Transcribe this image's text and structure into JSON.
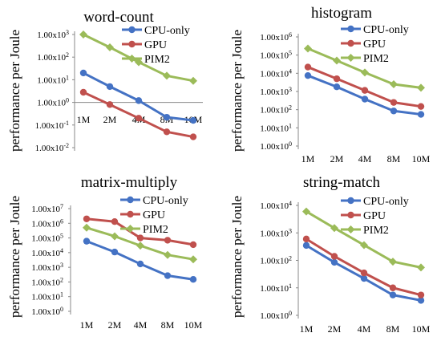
{
  "figure": {
    "ylabel": "performance per Joule"
  },
  "series_styles": [
    {
      "color": "#4472C4",
      "marker": "circle"
    },
    {
      "color": "#C0504D",
      "marker": "circle"
    },
    {
      "color": "#9BBB59",
      "marker": "diamond"
    }
  ],
  "chart_data": [
    {
      "type": "line",
      "title": "word-count",
      "y_scale": "log",
      "ylim_exp": [
        -2,
        3
      ],
      "categories": [
        "1M",
        "2M",
        "4M",
        "8M",
        "10M"
      ],
      "series": [
        {
          "name": "CPU-only",
          "values": [
            20,
            5,
            1.2,
            0.22,
            0.16
          ]
        },
        {
          "name": "GPU",
          "values": [
            2.8,
            0.8,
            0.2,
            0.05,
            0.03
          ]
        },
        {
          "name": "PIM2",
          "values": [
            1000,
            270,
            60,
            15,
            9
          ]
        }
      ],
      "legend": "top-right"
    },
    {
      "type": "line",
      "title": "histogram",
      "y_scale": "log",
      "ylim_exp": [
        0,
        6
      ],
      "categories": [
        "1M",
        "2M",
        "4M",
        "8M",
        "10M"
      ],
      "series": [
        {
          "name": "CPU-only",
          "values": [
            7500,
            1800,
            380,
            85,
            55
          ]
        },
        {
          "name": "GPU",
          "values": [
            22000,
            5000,
            1150,
            250,
            150
          ]
        },
        {
          "name": "PIM2",
          "values": [
            230000,
            50000,
            11000,
            2500,
            1600
          ]
        }
      ],
      "legend": "top-right"
    },
    {
      "type": "line",
      "title": "matrix-multiply",
      "y_scale": "log",
      "ylim_exp": [
        0,
        7
      ],
      "categories": [
        "1M",
        "2M",
        "4M",
        "8M",
        "10M"
      ],
      "series": [
        {
          "name": "CPU-only",
          "values": [
            60000,
            11000,
            1700,
            270,
            150
          ]
        },
        {
          "name": "GPU",
          "values": [
            2000000,
            1300000,
            100000,
            70000,
            35000
          ]
        },
        {
          "name": "PIM2",
          "values": [
            500000,
            130000,
            30000,
            7000,
            3500
          ]
        }
      ],
      "legend": "top-right"
    },
    {
      "type": "line",
      "title": "string-match",
      "y_scale": "log",
      "ylim_exp": [
        0,
        4
      ],
      "categories": [
        "1M",
        "2M",
        "4M",
        "8M",
        "10M"
      ],
      "series": [
        {
          "name": "CPU-only",
          "values": [
            350,
            85,
            22,
            5.5,
            3.5
          ]
        },
        {
          "name": "GPU",
          "values": [
            600,
            140,
            35,
            10,
            5.5
          ]
        },
        {
          "name": "PIM2",
          "values": [
            6000,
            1500,
            360,
            90,
            55
          ]
        }
      ],
      "legend": "top-right"
    }
  ]
}
